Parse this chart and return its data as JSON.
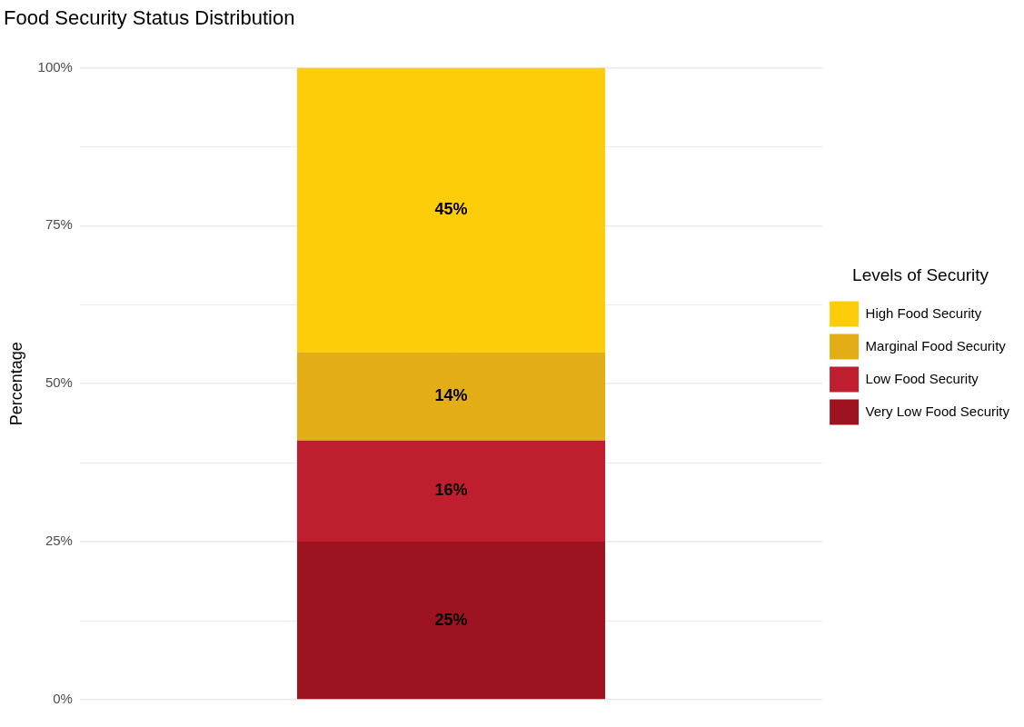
{
  "chart_data": {
    "type": "bar",
    "title": "Food Security Status Distribution",
    "ylabel": "Percentage",
    "legend_title": "Levels of Security",
    "categories": [
      null
    ],
    "stacked": true,
    "series": [
      {
        "name": "Very Low Food Security",
        "color": "#9d1420",
        "values": [
          25
        ],
        "value_labels": [
          "25%"
        ]
      },
      {
        "name": "Low Food Security",
        "color": "#bf1e2e",
        "values": [
          16
        ],
        "value_labels": [
          "16%"
        ]
      },
      {
        "name": "Marginal Food Security",
        "color": "#e2ad17",
        "values": [
          14
        ],
        "value_labels": [
          "14%"
        ]
      },
      {
        "name": "High Food Security",
        "color": "#fdcd0a",
        "values": [
          45
        ],
        "value_labels": [
          "45%"
        ]
      }
    ],
    "ylim": [
      0,
      100
    ],
    "yticks": [
      {
        "value": 0,
        "label": "0%"
      },
      {
        "value": 12.5,
        "label": null
      },
      {
        "value": 25,
        "label": "25%"
      },
      {
        "value": 37.5,
        "label": null
      },
      {
        "value": 50,
        "label": "50%"
      },
      {
        "value": 62.5,
        "label": null
      },
      {
        "value": 75,
        "label": "75%"
      },
      {
        "value": 87.5,
        "label": null
      },
      {
        "value": 100,
        "label": "100%"
      }
    ],
    "grid": true,
    "legend": "right",
    "tick_labels": "y"
  }
}
